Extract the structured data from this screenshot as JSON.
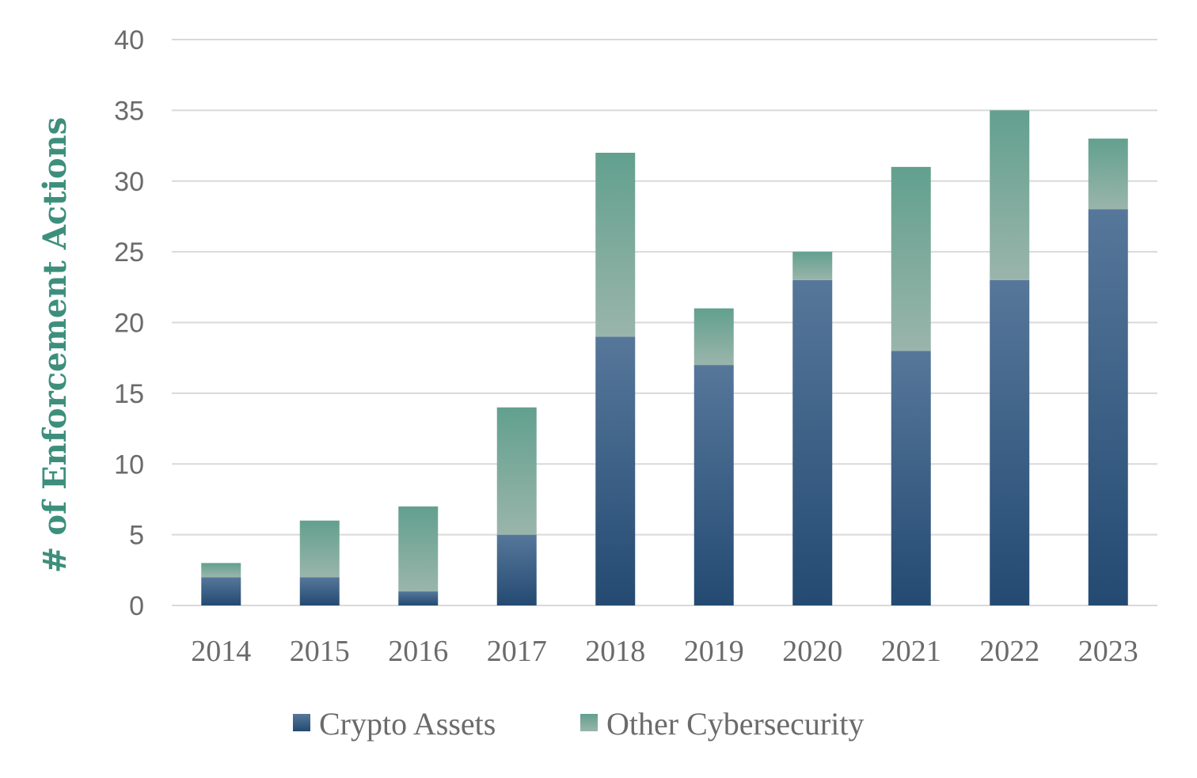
{
  "chart_data": {
    "type": "bar",
    "stacked": true,
    "categories": [
      "2014",
      "2015",
      "2016",
      "2017",
      "2018",
      "2019",
      "2020",
      "2021",
      "2022",
      "2023"
    ],
    "series": [
      {
        "name": "Crypto Assets",
        "values": [
          2,
          2,
          1,
          5,
          19,
          17,
          23,
          18,
          23,
          28
        ],
        "color_top": "#56779a",
        "color_bottom": "#244a72"
      },
      {
        "name": "Other Cybersecurity",
        "values": [
          1,
          4,
          6,
          9,
          13,
          4,
          2,
          13,
          12,
          5
        ],
        "color_top": "#62a08e",
        "color_bottom": "#9ab5ab"
      }
    ],
    "title": "",
    "xlabel": "",
    "ylabel": "# of Enforcement Actions",
    "ylim": [
      0,
      40
    ],
    "yticks": [
      0,
      5,
      10,
      15,
      20,
      25,
      30,
      35,
      40
    ],
    "grid": true,
    "legend_position": "bottom",
    "gridline_color": "#d9d9d9",
    "ylabel_color": "#3d8f7c"
  }
}
